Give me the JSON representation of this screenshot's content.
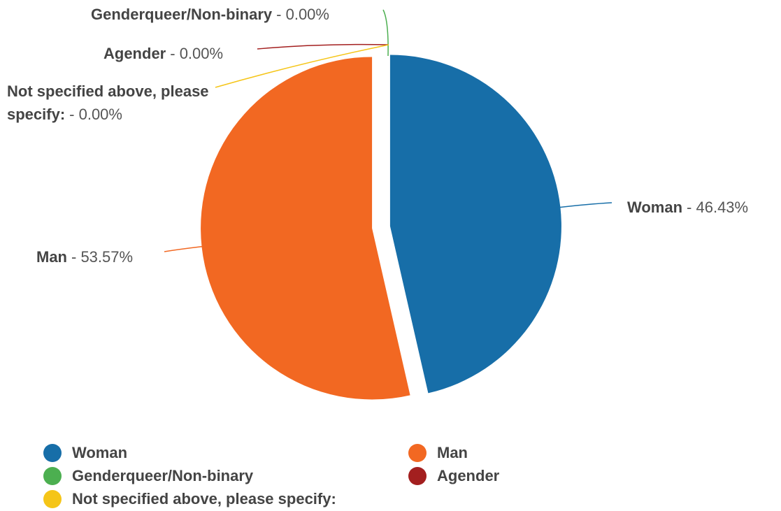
{
  "chart_data": {
    "type": "pie",
    "categories": [
      "Woman",
      "Man",
      "Genderqueer/Non-binary",
      "Agender",
      "Not specified above, please specify:"
    ],
    "values": [
      46.43,
      53.57,
      0,
      0,
      0
    ],
    "value_labels": [
      "- 46.43%",
      "- 53.57%",
      "- 0.00%",
      "- 0.00%",
      "- 0.00%"
    ],
    "colors": [
      "#176ea8",
      "#f26822",
      "#4caf50",
      "#a31f1f",
      "#f5c518"
    ],
    "legend": "bottom"
  }
}
